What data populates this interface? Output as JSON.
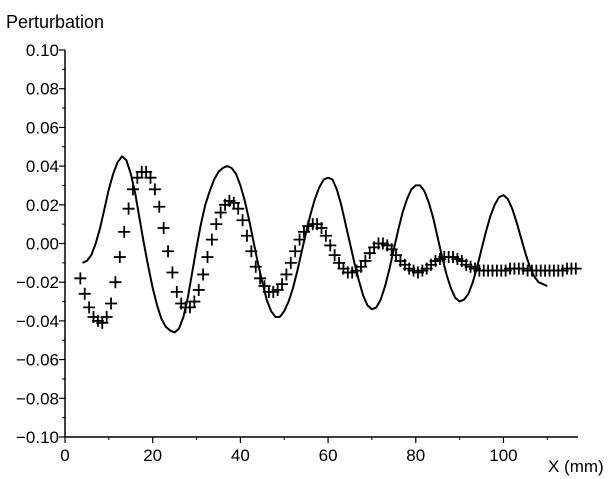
{
  "chart_data": {
    "type": "line",
    "title": "",
    "xlabel": "X (mm)",
    "ylabel": "Perturbation",
    "xlim": [
      0,
      117
    ],
    "ylim": [
      -0.1,
      0.1
    ],
    "grid": false,
    "x_ticks": [
      0,
      20,
      40,
      60,
      80,
      100
    ],
    "x_tick_labels": [
      "0",
      "20",
      "40",
      "60",
      "80",
      "100"
    ],
    "y_ticks": [
      0.1,
      0.08,
      0.06,
      0.04,
      0.02,
      0.0,
      -0.02,
      -0.04,
      -0.06,
      -0.08,
      -0.1
    ],
    "y_tick_labels": [
      "0.10",
      "0.08",
      "0.06",
      "0.04",
      "0.02",
      "0.00",
      "−0.02",
      "−0.04",
      "−0.06",
      "−0.08",
      "−0.10"
    ],
    "series": [
      {
        "style": "line",
        "color": "#000000",
        "points": [
          [
            4,
            -0.01
          ],
          [
            5,
            -0.009
          ],
          [
            6,
            -0.006
          ],
          [
            7,
            0.0
          ],
          [
            8,
            0.008
          ],
          [
            9,
            0.018
          ],
          [
            10,
            0.028
          ],
          [
            11,
            0.036
          ],
          [
            12,
            0.042
          ],
          [
            13,
            0.045
          ],
          [
            14,
            0.043
          ],
          [
            15,
            0.036
          ],
          [
            16,
            0.026
          ],
          [
            17,
            0.013
          ],
          [
            18,
            0.0
          ],
          [
            19,
            -0.012
          ],
          [
            20,
            -0.023
          ],
          [
            21,
            -0.032
          ],
          [
            22,
            -0.039
          ],
          [
            23,
            -0.043
          ],
          [
            24,
            -0.045
          ],
          [
            25,
            -0.046
          ],
          [
            26,
            -0.044
          ],
          [
            27,
            -0.038
          ],
          [
            28,
            -0.028
          ],
          [
            29,
            -0.015
          ],
          [
            30,
            -0.002
          ],
          [
            31,
            0.01
          ],
          [
            32,
            0.02
          ],
          [
            33,
            0.027
          ],
          [
            34,
            0.033
          ],
          [
            35,
            0.037
          ],
          [
            36,
            0.039
          ],
          [
            37,
            0.04
          ],
          [
            38,
            0.039
          ],
          [
            39,
            0.036
          ],
          [
            40,
            0.03
          ],
          [
            41,
            0.022
          ],
          [
            42,
            0.012
          ],
          [
            43,
            0.001
          ],
          [
            44,
            -0.01
          ],
          [
            45,
            -0.02
          ],
          [
            46,
            -0.029
          ],
          [
            47,
            -0.035
          ],
          [
            48,
            -0.038
          ],
          [
            49,
            -0.038
          ],
          [
            50,
            -0.035
          ],
          [
            51,
            -0.03
          ],
          [
            52,
            -0.023
          ],
          [
            53,
            -0.014
          ],
          [
            54,
            -0.004
          ],
          [
            55,
            0.006
          ],
          [
            56,
            0.015
          ],
          [
            57,
            0.023
          ],
          [
            58,
            0.029
          ],
          [
            59,
            0.033
          ],
          [
            60,
            0.034
          ],
          [
            61,
            0.033
          ],
          [
            62,
            0.028
          ],
          [
            63,
            0.02
          ],
          [
            64,
            0.01
          ],
          [
            65,
            0.0
          ],
          [
            66,
            -0.01
          ],
          [
            67,
            -0.019
          ],
          [
            68,
            -0.027
          ],
          [
            69,
            -0.032
          ],
          [
            70,
            -0.034
          ],
          [
            71,
            -0.033
          ],
          [
            72,
            -0.029
          ],
          [
            73,
            -0.022
          ],
          [
            74,
            -0.013
          ],
          [
            75,
            -0.003
          ],
          [
            76,
            0.007
          ],
          [
            77,
            0.016
          ],
          [
            78,
            0.023
          ],
          [
            79,
            0.028
          ],
          [
            80,
            0.03
          ],
          [
            81,
            0.03
          ],
          [
            82,
            0.027
          ],
          [
            83,
            0.021
          ],
          [
            84,
            0.013
          ],
          [
            85,
            0.003
          ],
          [
            86,
            -0.007
          ],
          [
            87,
            -0.016
          ],
          [
            88,
            -0.023
          ],
          [
            89,
            -0.028
          ],
          [
            90,
            -0.03
          ],
          [
            91,
            -0.029
          ],
          [
            92,
            -0.026
          ],
          [
            93,
            -0.02
          ],
          [
            94,
            -0.012
          ],
          [
            95,
            -0.003
          ],
          [
            96,
            0.006
          ],
          [
            97,
            0.014
          ],
          [
            98,
            0.02
          ],
          [
            99,
            0.024
          ],
          [
            100,
            0.025
          ],
          [
            101,
            0.023
          ],
          [
            102,
            0.018
          ],
          [
            103,
            0.011
          ],
          [
            104,
            0.003
          ],
          [
            105,
            -0.005
          ],
          [
            106,
            -0.012
          ],
          [
            107,
            -0.017
          ],
          [
            108,
            -0.02
          ],
          [
            109,
            -0.021
          ],
          [
            110,
            -0.022
          ]
        ]
      },
      {
        "style": "marker",
        "marker": "plus",
        "color": "#000000",
        "points": [
          [
            3.5,
            -0.018
          ],
          [
            4.5,
            -0.026
          ],
          [
            5.5,
            -0.033
          ],
          [
            6.5,
            -0.038
          ],
          [
            7.5,
            -0.04
          ],
          [
            8.5,
            -0.041
          ],
          [
            9.5,
            -0.038
          ],
          [
            10.5,
            -0.031
          ],
          [
            11.5,
            -0.02
          ],
          [
            12.5,
            -0.007
          ],
          [
            13.5,
            0.006
          ],
          [
            14.5,
            0.018
          ],
          [
            15.5,
            0.028
          ],
          [
            16.5,
            0.034
          ],
          [
            17.5,
            0.037
          ],
          [
            18.5,
            0.037
          ],
          [
            19.5,
            0.034
          ],
          [
            20.5,
            0.028
          ],
          [
            21.5,
            0.019
          ],
          [
            22.5,
            0.008
          ],
          [
            23.5,
            -0.004
          ],
          [
            24.5,
            -0.015
          ],
          [
            25.5,
            -0.025
          ],
          [
            26.5,
            -0.031
          ],
          [
            27.5,
            -0.033
          ],
          [
            28.5,
            -0.033
          ],
          [
            29.5,
            -0.03
          ],
          [
            30.5,
            -0.024
          ],
          [
            31.5,
            -0.016
          ],
          [
            32.5,
            -0.007
          ],
          [
            33.5,
            0.002
          ],
          [
            34.5,
            0.01
          ],
          [
            35.5,
            0.016
          ],
          [
            36.5,
            0.02
          ],
          [
            37.5,
            0.022
          ],
          [
            38.5,
            0.021
          ],
          [
            39.5,
            0.018
          ],
          [
            40.5,
            0.012
          ],
          [
            41.5,
            0.004
          ],
          [
            42.5,
            -0.004
          ],
          [
            43.5,
            -0.012
          ],
          [
            44.5,
            -0.018
          ],
          [
            45.5,
            -0.022
          ],
          [
            46.5,
            -0.025
          ],
          [
            47.5,
            -0.025
          ],
          [
            48.5,
            -0.024
          ],
          [
            49.5,
            -0.021
          ],
          [
            50.5,
            -0.016
          ],
          [
            51.5,
            -0.01
          ],
          [
            52.5,
            -0.004
          ],
          [
            53.5,
            0.002
          ],
          [
            54.5,
            0.006
          ],
          [
            55.5,
            0.009
          ],
          [
            56.5,
            0.01
          ],
          [
            57.5,
            0.01
          ],
          [
            58.5,
            0.008
          ],
          [
            59.5,
            0.004
          ],
          [
            60.5,
            -0.001
          ],
          [
            61.5,
            -0.006
          ],
          [
            62.5,
            -0.01
          ],
          [
            63.5,
            -0.013
          ],
          [
            64.5,
            -0.015
          ],
          [
            65.5,
            -0.015
          ],
          [
            66.5,
            -0.014
          ],
          [
            67.5,
            -0.012
          ],
          [
            68.5,
            -0.009
          ],
          [
            69.5,
            -0.005
          ],
          [
            70.5,
            -0.002
          ],
          [
            71.5,
            -0.0
          ],
          [
            72.5,
            0.0
          ],
          [
            73.5,
            -0.001
          ],
          [
            74.5,
            -0.003
          ],
          [
            75.5,
            -0.006
          ],
          [
            76.5,
            -0.009
          ],
          [
            77.5,
            -0.011
          ],
          [
            78.5,
            -0.013
          ],
          [
            79.5,
            -0.014
          ],
          [
            80.5,
            -0.015
          ],
          [
            81.5,
            -0.014
          ],
          [
            82.5,
            -0.013
          ],
          [
            83.5,
            -0.011
          ],
          [
            84.5,
            -0.009
          ],
          [
            85.5,
            -0.008
          ],
          [
            86.5,
            -0.007
          ],
          [
            87.5,
            -0.007
          ],
          [
            88.5,
            -0.007
          ],
          [
            89.5,
            -0.008
          ],
          [
            90.5,
            -0.009
          ],
          [
            91.5,
            -0.011
          ],
          [
            92.5,
            -0.012
          ],
          [
            93.5,
            -0.013
          ],
          [
            94.5,
            -0.014
          ],
          [
            95.5,
            -0.014
          ],
          [
            96.5,
            -0.014
          ],
          [
            97.5,
            -0.014
          ],
          [
            98.5,
            -0.014
          ],
          [
            99.5,
            -0.014
          ],
          [
            100.5,
            -0.014
          ],
          [
            101.5,
            -0.013
          ],
          [
            102.5,
            -0.013
          ],
          [
            103.5,
            -0.013
          ],
          [
            104.5,
            -0.013
          ],
          [
            105.5,
            -0.014
          ],
          [
            106.5,
            -0.014
          ],
          [
            107.5,
            -0.014
          ],
          [
            108.5,
            -0.014
          ],
          [
            109.5,
            -0.014
          ],
          [
            110.5,
            -0.014
          ],
          [
            111.5,
            -0.014
          ],
          [
            112.5,
            -0.014
          ],
          [
            113.5,
            -0.014
          ],
          [
            114.5,
            -0.013
          ],
          [
            115.5,
            -0.013
          ],
          [
            116.5,
            -0.013
          ]
        ]
      }
    ]
  }
}
